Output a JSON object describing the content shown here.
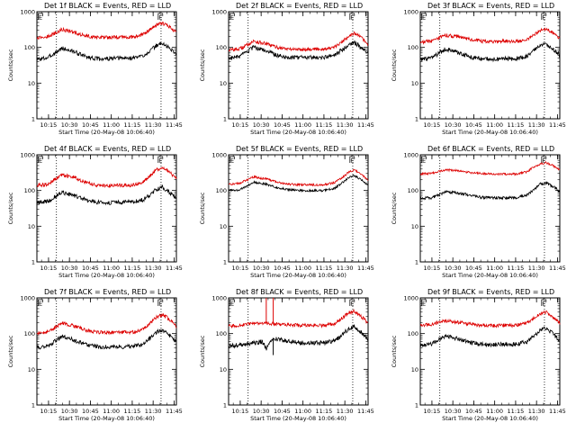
{
  "chart_data": [
    {
      "type": "line",
      "title": "Det 1f BLACK = Events, RED = LLD",
      "xlabel": "Start Time (20-May-08 10:06:40)",
      "ylabel": "Counts/sec",
      "yscale": "log",
      "ylim": [
        1,
        1000
      ],
      "yticks": [
        "1",
        "10",
        "100",
        "1000"
      ],
      "xticks": [
        "10:15",
        "10:30",
        "10:45",
        "11:00",
        "11:15",
        "11:30",
        "11:45"
      ],
      "xlim_minutes": [
        0,
        100
      ],
      "vlines_minutes": [
        14,
        89
      ],
      "flag_markers": [
        {
          "label": "E",
          "x_minutes": 0
        },
        {
          "label": "E",
          "x_minutes": 86
        }
      ],
      "series": [
        {
          "name": "Events",
          "color": "#000000",
          "x_minutes": [
            0,
            8,
            18,
            27,
            35,
            43,
            52,
            60,
            68,
            76,
            82,
            86,
            90,
            95,
            100
          ],
          "values": [
            45,
            52,
            95,
            75,
            55,
            48,
            48,
            50,
            50,
            58,
            85,
            115,
            130,
            95,
            65
          ],
          "noise": 0.06
        },
        {
          "name": "LLD",
          "color": "#dd0000",
          "x_minutes": [
            0,
            8,
            18,
            27,
            35,
            43,
            52,
            60,
            68,
            76,
            82,
            86,
            90,
            95,
            100
          ],
          "values": [
            190,
            200,
            320,
            260,
            210,
            190,
            190,
            195,
            195,
            225,
            330,
            430,
            480,
            380,
            260
          ],
          "noise": 0.05
        }
      ]
    },
    {
      "type": "line",
      "title": "Det 2f BLACK = Events, RED = LLD",
      "xlabel": "Start Time (20-May-08 10:06:40)",
      "ylabel": "Counts/sec",
      "yscale": "log",
      "ylim": [
        1,
        1000
      ],
      "yticks": [
        "1",
        "10",
        "100",
        "1000"
      ],
      "xticks": [
        "10:15",
        "10:30",
        "10:45",
        "11:00",
        "11:15",
        "11:30",
        "11:45"
      ],
      "xlim_minutes": [
        0,
        100
      ],
      "vlines_minutes": [
        14,
        89
      ],
      "flag_markers": [
        {
          "label": "E",
          "x_minutes": 0
        },
        {
          "label": "E",
          "x_minutes": 86
        }
      ],
      "series": [
        {
          "name": "Events",
          "color": "#000000",
          "x_minutes": [
            0,
            8,
            18,
            27,
            35,
            43,
            52,
            60,
            68,
            76,
            82,
            86,
            90,
            95,
            100
          ],
          "values": [
            50,
            55,
            100,
            80,
            60,
            52,
            52,
            53,
            52,
            60,
            90,
            120,
            140,
            100,
            70
          ],
          "noise": 0.06
        },
        {
          "name": "LLD",
          "color": "#dd0000",
          "x_minutes": [
            0,
            8,
            18,
            27,
            35,
            43,
            52,
            60,
            68,
            76,
            82,
            86,
            90,
            95,
            100
          ],
          "values": [
            85,
            90,
            150,
            125,
            100,
            90,
            88,
            90,
            90,
            100,
            150,
            210,
            250,
            190,
            120
          ],
          "noise": 0.05
        }
      ]
    },
    {
      "type": "line",
      "title": "Det 3f BLACK = Events, RED = LLD",
      "xlabel": "Start Time (20-May-08 10:06:40)",
      "ylabel": "Counts/sec",
      "yscale": "log",
      "ylim": [
        1,
        1000
      ],
      "yticks": [
        "1",
        "10",
        "100",
        "1000"
      ],
      "xticks": [
        "10:15",
        "10:30",
        "10:45",
        "11:00",
        "11:15",
        "11:30",
        "11:45"
      ],
      "xlim_minutes": [
        0,
        100
      ],
      "vlines_minutes": [
        14,
        89
      ],
      "flag_markers": [
        {
          "label": "E",
          "x_minutes": 0
        },
        {
          "label": "E",
          "x_minutes": 86
        }
      ],
      "series": [
        {
          "name": "Events",
          "color": "#000000",
          "x_minutes": [
            0,
            8,
            18,
            27,
            35,
            43,
            52,
            60,
            68,
            76,
            82,
            86,
            90,
            95,
            100
          ],
          "values": [
            45,
            50,
            90,
            72,
            55,
            48,
            47,
            48,
            48,
            55,
            85,
            110,
            125,
            90,
            60
          ],
          "noise": 0.06
        },
        {
          "name": "LLD",
          "color": "#dd0000",
          "x_minutes": [
            0,
            8,
            18,
            27,
            35,
            43,
            52,
            60,
            68,
            76,
            82,
            86,
            90,
            95,
            100
          ],
          "values": [
            140,
            150,
            220,
            200,
            170,
            150,
            145,
            150,
            145,
            160,
            230,
            300,
            330,
            260,
            180
          ],
          "noise": 0.05
        }
      ]
    },
    {
      "type": "line",
      "title": "Det 4f BLACK = Events, RED = LLD",
      "xlabel": "Start Time (20-May-08 10:06:40)",
      "ylabel": "Counts/sec",
      "yscale": "log",
      "ylim": [
        1,
        1000
      ],
      "yticks": [
        "1",
        "10",
        "100",
        "1000"
      ],
      "xticks": [
        "10:15",
        "10:30",
        "10:45",
        "11:00",
        "11:15",
        "11:30",
        "11:45"
      ],
      "xlim_minutes": [
        0,
        100
      ],
      "vlines_minutes": [
        14,
        89
      ],
      "flag_markers": [
        {
          "label": "E",
          "x_minutes": 0
        },
        {
          "label": "E",
          "x_minutes": 86
        }
      ],
      "series": [
        {
          "name": "Events",
          "color": "#000000",
          "x_minutes": [
            0,
            8,
            18,
            27,
            35,
            43,
            52,
            60,
            68,
            76,
            82,
            86,
            90,
            95,
            100
          ],
          "values": [
            45,
            50,
            90,
            70,
            55,
            47,
            45,
            47,
            47,
            55,
            80,
            110,
            125,
            90,
            60
          ],
          "noise": 0.06
        },
        {
          "name": "LLD",
          "color": "#dd0000",
          "x_minutes": [
            0,
            8,
            18,
            27,
            35,
            43,
            52,
            60,
            68,
            76,
            82,
            86,
            90,
            95,
            100
          ],
          "values": [
            140,
            150,
            280,
            230,
            170,
            140,
            135,
            140,
            140,
            170,
            280,
            380,
            450,
            330,
            210
          ],
          "noise": 0.05
        }
      ]
    },
    {
      "type": "line",
      "title": "Det 5f BLACK = Events, RED = LLD",
      "xlabel": "Start Time (20-May-08 10:06:40)",
      "ylabel": "Counts/sec",
      "yscale": "log",
      "ylim": [
        1,
        1000
      ],
      "yticks": [
        "1",
        "10",
        "100",
        "1000"
      ],
      "xticks": [
        "10:15",
        "10:30",
        "10:45",
        "11:00",
        "11:15",
        "11:30",
        "11:45"
      ],
      "xlim_minutes": [
        0,
        100
      ],
      "vlines_minutes": [
        14,
        89
      ],
      "flag_markers": [
        {
          "label": "E",
          "x_minutes": 0
        },
        {
          "label": "E",
          "x_minutes": 86
        }
      ],
      "series": [
        {
          "name": "Events",
          "color": "#000000",
          "x_minutes": [
            0,
            8,
            18,
            27,
            35,
            43,
            52,
            60,
            68,
            76,
            82,
            86,
            90,
            95,
            100
          ],
          "values": [
            100,
            105,
            170,
            150,
            120,
            105,
            100,
            100,
            100,
            115,
            170,
            230,
            260,
            200,
            140
          ],
          "noise": 0.03
        },
        {
          "name": "LLD",
          "color": "#dd0000",
          "x_minutes": [
            0,
            8,
            18,
            27,
            35,
            43,
            52,
            60,
            68,
            76,
            82,
            86,
            90,
            95,
            100
          ],
          "values": [
            150,
            160,
            240,
            210,
            170,
            150,
            145,
            145,
            145,
            165,
            240,
            320,
            370,
            290,
            200
          ],
          "noise": 0.03
        }
      ]
    },
    {
      "type": "line",
      "title": "Det 6f BLACK = Events, RED = LLD",
      "xlabel": "Start Time (20-May-08 10:06:40)",
      "ylabel": "Counts/sec",
      "yscale": "log",
      "ylim": [
        1,
        1000
      ],
      "yticks": [
        "1",
        "10",
        "100",
        "1000"
      ],
      "xticks": [
        "10:15",
        "10:30",
        "10:45",
        "11:00",
        "11:15",
        "11:30",
        "11:45"
      ],
      "xlim_minutes": [
        0,
        100
      ],
      "vlines_minutes": [
        14,
        89
      ],
      "flag_markers": [
        {
          "label": "E",
          "x_minutes": 0
        },
        {
          "label": "E",
          "x_minutes": 86
        }
      ],
      "series": [
        {
          "name": "Events",
          "color": "#000000",
          "x_minutes": [
            0,
            8,
            18,
            27,
            35,
            43,
            52,
            60,
            68,
            76,
            82,
            86,
            90,
            95,
            100
          ],
          "values": [
            60,
            62,
            90,
            85,
            75,
            65,
            62,
            62,
            62,
            72,
            110,
            150,
            165,
            130,
            95
          ],
          "noise": 0.04
        },
        {
          "name": "LLD",
          "color": "#dd0000",
          "x_minutes": [
            0,
            8,
            18,
            27,
            35,
            43,
            52,
            60,
            68,
            76,
            82,
            86,
            90,
            95,
            100
          ],
          "values": [
            290,
            300,
            380,
            360,
            320,
            300,
            290,
            290,
            290,
            330,
            470,
            560,
            600,
            500,
            380
          ],
          "noise": 0.03
        }
      ]
    },
    {
      "type": "line",
      "title": "Det 7f BLACK = Events, RED = LLD",
      "xlabel": "Start Time (20-May-08 10:06:40)",
      "ylabel": "Counts/sec",
      "yscale": "log",
      "ylim": [
        1,
        1000
      ],
      "yticks": [
        "1",
        "10",
        "100",
        "1000"
      ],
      "xticks": [
        "10:15",
        "10:30",
        "10:45",
        "11:00",
        "11:15",
        "11:30",
        "11:45"
      ],
      "xlim_minutes": [
        0,
        100
      ],
      "vlines_minutes": [
        14,
        89
      ],
      "flag_markers": [
        {
          "label": "E",
          "x_minutes": 0
        },
        {
          "label": "E",
          "x_minutes": 86
        }
      ],
      "series": [
        {
          "name": "Events",
          "color": "#000000",
          "x_minutes": [
            0,
            8,
            18,
            27,
            35,
            43,
            52,
            60,
            68,
            76,
            82,
            86,
            90,
            95,
            100
          ],
          "values": [
            40,
            45,
            85,
            65,
            50,
            43,
            42,
            43,
            43,
            50,
            80,
            110,
            125,
            90,
            60
          ],
          "noise": 0.06
        },
        {
          "name": "LLD",
          "color": "#dd0000",
          "x_minutes": [
            0,
            8,
            18,
            27,
            35,
            43,
            52,
            60,
            68,
            76,
            82,
            86,
            90,
            95,
            100
          ],
          "values": [
            100,
            110,
            200,
            160,
            125,
            110,
            105,
            108,
            108,
            130,
            210,
            290,
            340,
            250,
            160
          ],
          "noise": 0.05
        }
      ]
    },
    {
      "type": "line",
      "title": "Det 8f BLACK = Events, RED = LLD",
      "xlabel": "Start Time (20-May-08 10:06:40)",
      "ylabel": "Counts/sec",
      "yscale": "log",
      "ylim": [
        1,
        1000
      ],
      "yticks": [
        "1",
        "10",
        "100",
        "1000"
      ],
      "xticks": [
        "10:15",
        "10:30",
        "10:45",
        "11:00",
        "11:15",
        "11:30",
        "11:45"
      ],
      "xlim_minutes": [
        0,
        100
      ],
      "vlines_minutes": [
        14,
        89
      ],
      "flag_markers": [
        {
          "label": "E",
          "x_minutes": 0
        },
        {
          "label": "E",
          "x_minutes": 86
        }
      ],
      "spikes": [
        {
          "series": "LLD",
          "x_minutes": [
            27,
            32
          ],
          "peak": 1000
        },
        {
          "series": "Events",
          "x_minutes": [
            32
          ],
          "low": 25
        }
      ],
      "series": [
        {
          "name": "Events",
          "color": "#000000",
          "x_minutes": [
            0,
            8,
            18,
            24,
            27,
            32,
            35,
            43,
            52,
            60,
            68,
            76,
            82,
            86,
            90,
            95,
            100
          ],
          "values": [
            45,
            48,
            55,
            60,
            38,
            75,
            70,
            60,
            55,
            55,
            55,
            62,
            95,
            140,
            160,
            110,
            70
          ],
          "noise": 0.06
        },
        {
          "name": "LLD",
          "color": "#dd0000",
          "x_minutes": [
            0,
            8,
            18,
            27,
            32,
            35,
            43,
            52,
            60,
            68,
            76,
            82,
            86,
            90,
            95,
            100
          ],
          "values": [
            160,
            170,
            190,
            190,
            190,
            185,
            175,
            170,
            170,
            170,
            190,
            280,
            380,
            420,
            300,
            200
          ],
          "noise": 0.05
        }
      ]
    },
    {
      "type": "line",
      "title": "Det 9f BLACK = Events, RED = LLD",
      "xlabel": "Start Time (20-May-08 10:06:40)",
      "ylabel": "Counts/sec",
      "yscale": "log",
      "ylim": [
        1,
        1000
      ],
      "yticks": [
        "1",
        "10",
        "100",
        "1000"
      ],
      "xticks": [
        "10:15",
        "10:30",
        "10:45",
        "11:00",
        "11:15",
        "11:30",
        "11:45"
      ],
      "xlim_minutes": [
        0,
        100
      ],
      "vlines_minutes": [
        14,
        89
      ],
      "flag_markers": [
        {
          "label": "E",
          "x_minutes": 0
        },
        {
          "label": "E",
          "x_minutes": 86
        }
      ],
      "series": [
        {
          "name": "Events",
          "color": "#000000",
          "x_minutes": [
            0,
            8,
            18,
            27,
            35,
            43,
            52,
            60,
            68,
            76,
            82,
            86,
            90,
            95,
            100
          ],
          "values": [
            48,
            52,
            85,
            72,
            58,
            50,
            48,
            50,
            50,
            58,
            90,
            125,
            140,
            100,
            65
          ],
          "noise": 0.06
        },
        {
          "name": "LLD",
          "color": "#dd0000",
          "x_minutes": [
            0,
            8,
            18,
            27,
            35,
            43,
            52,
            60,
            68,
            76,
            82,
            86,
            90,
            95,
            100
          ],
          "values": [
            170,
            180,
            230,
            210,
            185,
            170,
            165,
            170,
            170,
            195,
            280,
            360,
            400,
            300,
            200
          ],
          "noise": 0.05
        }
      ]
    }
  ]
}
